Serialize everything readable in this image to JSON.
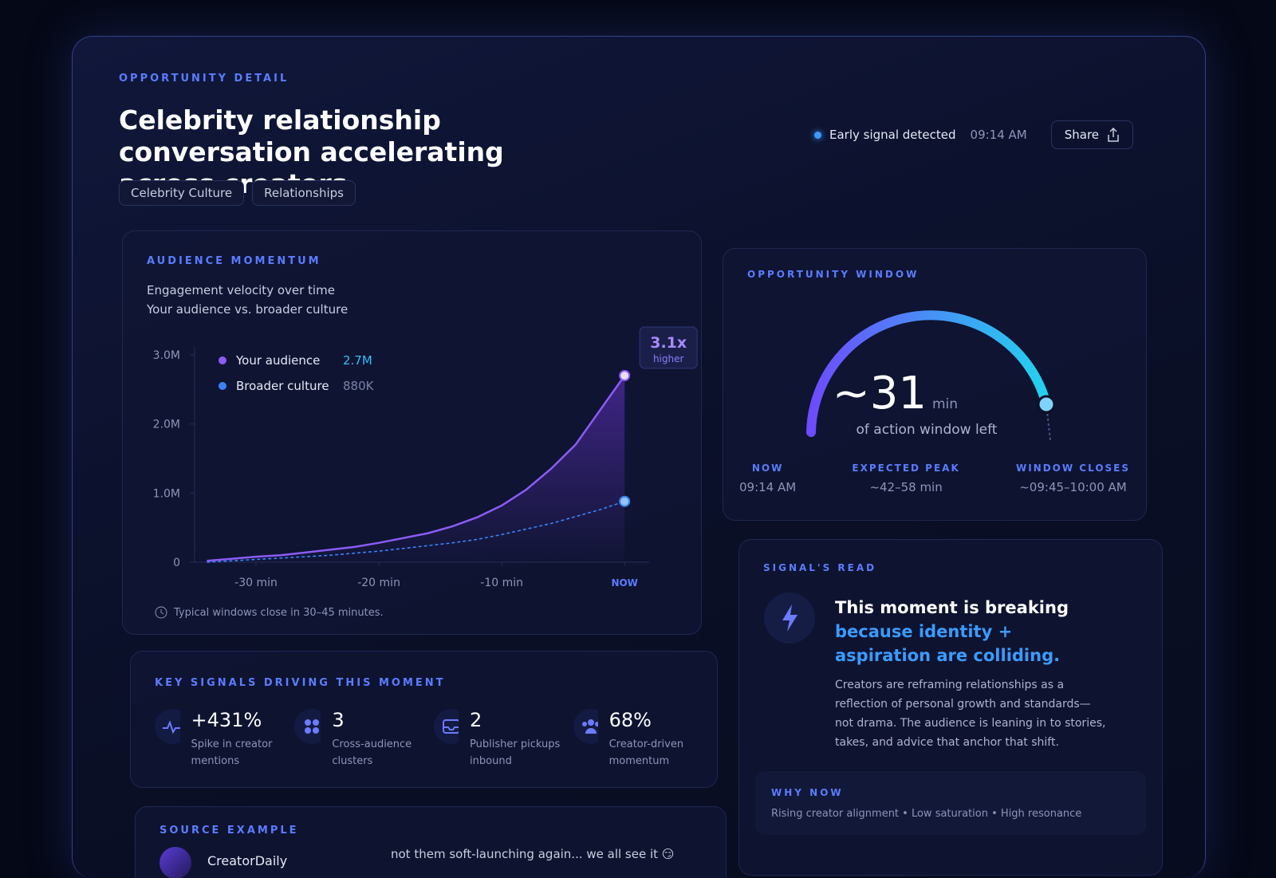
{
  "header": {
    "eyebrow": "OPPORTUNITY DETAIL",
    "title": "Celebrity relationship conversation accelerating across creators.",
    "tags": [
      "Celebrity Culture",
      "Relationships"
    ],
    "status": "Early signal detected",
    "time": "09:14 AM",
    "share": "Share"
  },
  "momentum": {
    "title": "AUDIENCE MOMENTUM",
    "subtitle": "Engagement velocity over time",
    "subtitle2": "Your audience vs. broader culture",
    "footnote": "Typical windows close in 30–45 minutes."
  },
  "chart_data": {
    "type": "line",
    "x": [
      -34,
      -32,
      -30,
      -28,
      -26,
      -24,
      -22,
      -20,
      -18,
      -16,
      -14,
      -12,
      -10,
      -8,
      -6,
      -4,
      -2,
      0
    ],
    "series": [
      {
        "name": "Your audience",
        "color": "#8b5cf6",
        "legend_value": "2.7M",
        "values": [
          20000,
          50000,
          80000,
          100000,
          140000,
          180000,
          220000,
          280000,
          350000,
          420000,
          520000,
          650000,
          820000,
          1050000,
          1350000,
          1700000,
          2200000,
          2700000
        ]
      },
      {
        "name": "Broader culture",
        "color": "#3b82f6",
        "legend_value": "880K",
        "values": [
          0,
          20000,
          40000,
          60000,
          80000,
          100000,
          130000,
          160000,
          200000,
          240000,
          280000,
          330000,
          400000,
          480000,
          560000,
          660000,
          760000,
          880000
        ]
      }
    ],
    "xlim": [
      -35,
      2
    ],
    "xticks": [
      {
        "value": -30,
        "label": "-30 min"
      },
      {
        "value": -20,
        "label": "-20 min"
      },
      {
        "value": -10,
        "label": "-10 min"
      },
      {
        "value": 0,
        "label": "NOW"
      }
    ],
    "ylim": [
      0,
      3000000
    ],
    "yticks": [
      0,
      {
        "value": 1000000,
        "label": "1.0M"
      },
      {
        "value": 2000000,
        "label": "2.0M"
      },
      {
        "value": 3000000,
        "label": "3.0M"
      }
    ],
    "annotation": "3.1x",
    "annotation_sub": "higher"
  },
  "window": {
    "title": "OPPORTUNITY WINDOW",
    "value": "~31",
    "unit": "min",
    "caption": "of action window left",
    "stats": [
      {
        "label": "NOW",
        "value": "09:14 AM"
      },
      {
        "label": "EXPECTED PEAK",
        "value": "~42–58 min"
      },
      {
        "label": "WINDOW CLOSES",
        "value": "~09:45–10:00 AM"
      }
    ]
  },
  "signals": {
    "title": "KEY SIGNALS DRIVING THIS MOMENT",
    "items": [
      {
        "value": "+431%",
        "label": "Spike in creator mentions"
      },
      {
        "value": "3",
        "label": "Cross-audience clusters"
      },
      {
        "value": "2",
        "label": "Publisher pickups inbound"
      },
      {
        "value": "68%",
        "label": "Creator-driven momentum"
      }
    ]
  },
  "read": {
    "title": "SIGNAL'S READ",
    "headline": "This moment is breaking",
    "headline_accent": "because identity + aspiration are colliding.",
    "body": "Creators are reframing relationships as a reflection of personal growth and standards—not drama. The audience is leaning in to stories, takes, and advice that anchor that shift.",
    "why_title": "WHY NOW",
    "why_body": "Rising creator alignment • Low saturation • High resonance"
  },
  "source": {
    "title": "SOURCE EXAMPLE",
    "author": "CreatorDaily",
    "quote": "not them soft-launching again... we all see it 😏"
  }
}
